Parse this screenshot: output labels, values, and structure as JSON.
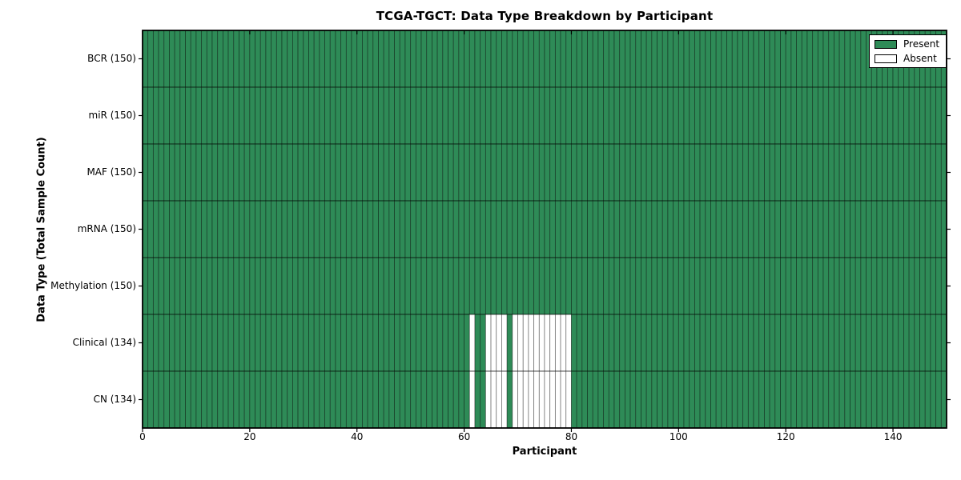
{
  "chart_data": {
    "type": "heatmap",
    "title": "TCGA-TGCT: Data Type Breakdown by Participant",
    "xlabel": "Participant",
    "ylabel": "Data Type (Total Sample Count)",
    "n_participants": 150,
    "xlim": [
      0,
      150
    ],
    "x_ticks": [
      0,
      20,
      40,
      60,
      80,
      100,
      120,
      140
    ],
    "rows": [
      {
        "label": "BCR (150)",
        "present_count": 150,
        "absent_participants": []
      },
      {
        "label": "miR (150)",
        "present_count": 150,
        "absent_participants": []
      },
      {
        "label": "MAF (150)",
        "present_count": 150,
        "absent_participants": []
      },
      {
        "label": "mRNA (150)",
        "present_count": 150,
        "absent_participants": []
      },
      {
        "label": "Methylation (150)",
        "present_count": 150,
        "absent_participants": []
      },
      {
        "label": "Clinical (134)",
        "present_count": 134,
        "absent_participants": [
          61,
          64,
          65,
          66,
          67,
          69,
          70,
          71,
          72,
          73,
          74,
          75,
          76,
          77,
          78,
          79
        ]
      },
      {
        "label": "CN (134)",
        "present_count": 134,
        "absent_participants": [
          61,
          64,
          65,
          66,
          67,
          69,
          70,
          71,
          72,
          73,
          74,
          75,
          76,
          77,
          78,
          79
        ]
      }
    ],
    "legend": [
      {
        "label": "Present",
        "color": "#2e8b57"
      },
      {
        "label": "Absent",
        "color": "#ffffff"
      }
    ],
    "legend_position": "upper right",
    "colors": {
      "present": "#2e8b57",
      "absent": "#ffffff",
      "cell_edge": "rgba(0,0,0,0.45)",
      "row_separator": "rgba(0,0,0,0.5)",
      "spine": "#000000",
      "background": "#ffffff"
    },
    "grid": "cell-borders"
  }
}
